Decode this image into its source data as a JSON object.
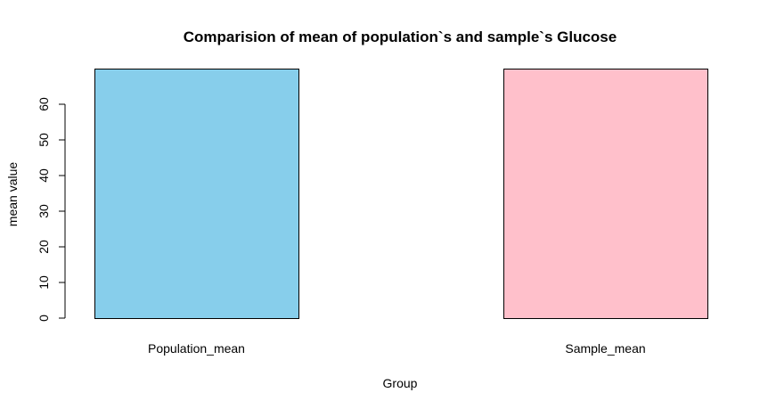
{
  "chart_data": {
    "type": "bar",
    "title": "Comparision of mean of population`s and sample`s Glucose",
    "xlabel": "Group",
    "ylabel": "mean value",
    "categories": [
      "Population_mean",
      "Sample_mean"
    ],
    "values": [
      70,
      70
    ],
    "colors": [
      "#87CEEB",
      "#FFC0CB"
    ],
    "bar_border_color": "#000000",
    "ylim": [
      0,
      70
    ],
    "yticks": [
      "0",
      "10",
      "20",
      "30",
      "40",
      "50",
      "60"
    ],
    "grid": false,
    "legend": "none"
  }
}
